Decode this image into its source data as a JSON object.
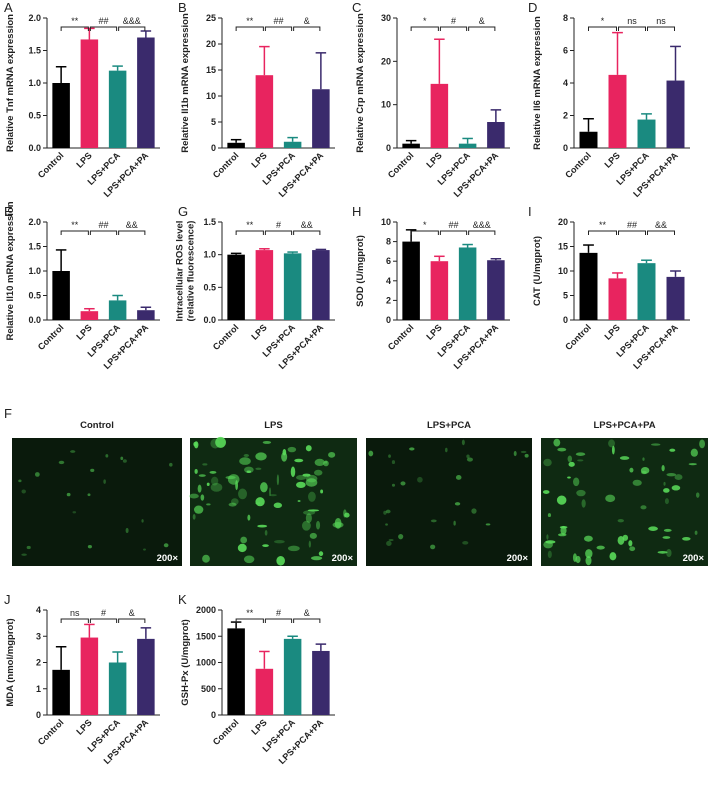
{
  "chart_data": [
    {
      "type": "bar",
      "label": "A",
      "ylabel": "Relative Tnf mRNA expression",
      "categories": [
        "Control",
        "LPS",
        "LPS+PCA",
        "LPS+PCA+PA"
      ],
      "values": [
        1.0,
        1.67,
        1.19,
        1.7
      ],
      "errors": [
        0.25,
        0.17,
        0.07,
        0.1
      ],
      "colors": [
        "#000000",
        "#e8245f",
        "#1a8a80",
        "#3a2a6c"
      ],
      "ylim": [
        0,
        2
      ],
      "yticks": [
        {
          "value": 0,
          "label": "0.0"
        },
        {
          "value": 0.5,
          "label": "0.5"
        },
        {
          "value": 1,
          "label": "1.0"
        },
        {
          "value": 1.5,
          "label": "1.5"
        },
        {
          "value": 2,
          "label": "2.0"
        }
      ],
      "annotations": [
        "**",
        "##",
        "&&&"
      ]
    },
    {
      "type": "bar",
      "label": "B",
      "ylabel": "Relative Il1b mRNA expression",
      "categories": [
        "Control",
        "LPS",
        "LPS+PCA",
        "LPS+PCA+PA"
      ],
      "values": [
        1.0,
        14,
        1.2,
        11.3
      ],
      "errors": [
        0.6,
        5.5,
        0.8,
        7
      ],
      "colors": [
        "#000000",
        "#e8245f",
        "#1a8a80",
        "#3a2a6c"
      ],
      "ylim": [
        0,
        25
      ],
      "yticks": [
        0,
        5,
        10,
        15,
        20,
        25
      ],
      "annotations": [
        "**",
        "##",
        "&"
      ]
    },
    {
      "type": "bar",
      "label": "C",
      "ylabel": "Relative Crp mRNA expression",
      "categories": [
        "Control",
        "LPS",
        "LPS+PCA",
        "LPS+PCA+PA"
      ],
      "values": [
        1.0,
        14.8,
        1.0,
        6
      ],
      "errors": [
        0.7,
        10.3,
        1.2,
        2.8
      ],
      "colors": [
        "#000000",
        "#e8245f",
        "#1a8a80",
        "#3a2a6c"
      ],
      "ylim": [
        0,
        30
      ],
      "yticks": [
        0,
        10,
        20,
        30
      ],
      "annotations": [
        "*",
        "#",
        "&"
      ]
    },
    {
      "type": "bar",
      "label": "D",
      "ylabel": "Relative Il6 mRNA expression",
      "categories": [
        "Control",
        "LPS",
        "LPS+PCA",
        "LPS+PCA+PA"
      ],
      "values": [
        1.0,
        4.5,
        1.75,
        4.15
      ],
      "errors": [
        0.8,
        2.6,
        0.35,
        2.1
      ],
      "colors": [
        "#000000",
        "#e8245f",
        "#1a8a80",
        "#3a2a6c"
      ],
      "ylim": [
        0,
        8
      ],
      "yticks": [
        0,
        2,
        4,
        6,
        8
      ],
      "annotations": [
        "*",
        "ns",
        "ns"
      ]
    },
    {
      "type": "bar",
      "label": "E",
      "ylabel": "Relative Il10 mRNA expression",
      "categories": [
        "Control",
        "LPS",
        "LPS+PCA",
        "LPS+PCA+PA"
      ],
      "values": [
        1.0,
        0.18,
        0.4,
        0.2
      ],
      "errors": [
        0.43,
        0.05,
        0.1,
        0.06
      ],
      "colors": [
        "#000000",
        "#e8245f",
        "#1a8a80",
        "#3a2a6c"
      ],
      "ylim": [
        0,
        2
      ],
      "yticks": [
        {
          "value": 0,
          "label": "0.0"
        },
        {
          "value": 0.5,
          "label": "0.5"
        },
        {
          "value": 1,
          "label": "1.0"
        },
        {
          "value": 1.5,
          "label": "1.5"
        },
        {
          "value": 2,
          "label": "2.0"
        }
      ],
      "annotations": [
        "**",
        "##",
        "&&"
      ]
    },
    {
      "type": "bar",
      "label": "G",
      "ylabel": [
        "Intracellular ROS level",
        "(relative fluorescence)"
      ],
      "categories": [
        "Control",
        "LPS",
        "LPS+PCA",
        "LPS+PCA+PA"
      ],
      "values": [
        1.0,
        1.07,
        1.02,
        1.07
      ],
      "errors": [
        0.02,
        0.02,
        0.02,
        0.01
      ],
      "colors": [
        "#000000",
        "#e8245f",
        "#1a8a80",
        "#3a2a6c"
      ],
      "ylim": [
        0,
        1.5
      ],
      "yticks": [
        {
          "value": 0,
          "label": "0.0"
        },
        {
          "value": 0.5,
          "label": "0.5"
        },
        {
          "value": 1,
          "label": "1.0"
        },
        {
          "value": 1.5,
          "label": "1.5"
        }
      ],
      "annotations": [
        "**",
        "#",
        "&&"
      ]
    },
    {
      "type": "bar",
      "label": "H",
      "ylabel": "SOD (U/mgprot)",
      "categories": [
        "Control",
        "LPS",
        "LPS+PCA",
        "LPS+PCA+PA"
      ],
      "values": [
        8.0,
        6.0,
        7.4,
        6.1
      ],
      "errors": [
        1.2,
        0.5,
        0.3,
        0.15
      ],
      "colors": [
        "#000000",
        "#e8245f",
        "#1a8a80",
        "#3a2a6c"
      ],
      "ylim": [
        0,
        10
      ],
      "yticks": [
        0,
        2,
        4,
        6,
        8,
        10
      ],
      "annotations": [
        "*",
        "##",
        "&&&"
      ]
    },
    {
      "type": "bar",
      "label": "I",
      "ylabel": "CAT (U/mgprot)",
      "categories": [
        "Control",
        "LPS",
        "LPS+PCA",
        "LPS+PCA+PA"
      ],
      "values": [
        13.7,
        8.5,
        11.6,
        8.8
      ],
      "errors": [
        1.6,
        1.1,
        0.6,
        1.2
      ],
      "colors": [
        "#000000",
        "#e8245f",
        "#1a8a80",
        "#3a2a6c"
      ],
      "ylim": [
        0,
        20
      ],
      "yticks": [
        0,
        5,
        10,
        15,
        20
      ],
      "annotations": [
        "**",
        "##",
        "&&"
      ]
    },
    {
      "type": "image",
      "label": "F",
      "panels": [
        "Control",
        "LPS",
        "LPS+PCA",
        "LPS+PCA+PA"
      ],
      "magnification": "200×"
    },
    {
      "type": "bar",
      "label": "J",
      "ylabel": "MDA (nmol/mgprot)",
      "categories": [
        "Control",
        "LPS",
        "LPS+PCA",
        "LPS+PCA+PA"
      ],
      "values": [
        1.72,
        2.95,
        2.0,
        2.9
      ],
      "errors": [
        0.88,
        0.5,
        0.4,
        0.42
      ],
      "colors": [
        "#000000",
        "#e8245f",
        "#1a8a80",
        "#3a2a6c"
      ],
      "ylim": [
        0,
        4
      ],
      "yticks": [
        0,
        1,
        2,
        3,
        4
      ],
      "annotations": [
        "ns",
        "#",
        "&"
      ]
    },
    {
      "type": "bar",
      "label": "K",
      "ylabel": "GSH-Px (U/mgprot)",
      "categories": [
        "Control",
        "LPS",
        "LPS+PCA",
        "LPS+PCA+PA"
      ],
      "values": [
        1650,
        880,
        1450,
        1220
      ],
      "errors": [
        120,
        330,
        50,
        130
      ],
      "colors": [
        "#000000",
        "#e8245f",
        "#1a8a80",
        "#3a2a6c"
      ],
      "ylim": [
        0,
        2000
      ],
      "yticks": [
        0,
        500,
        1000,
        1500,
        2000
      ],
      "annotations": [
        "**",
        "#",
        "&"
      ]
    }
  ]
}
